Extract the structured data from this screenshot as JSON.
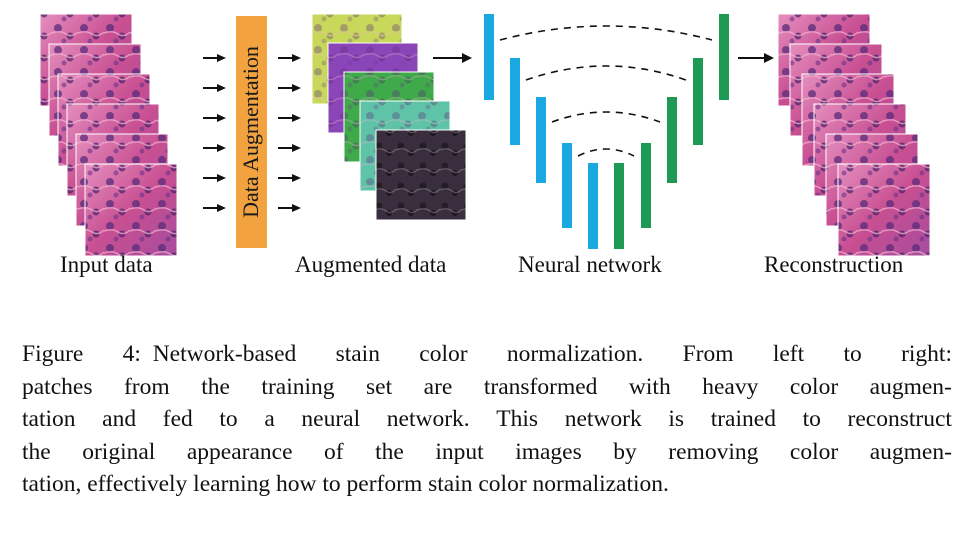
{
  "diagram": {
    "labels": {
      "input": "Input data",
      "augmented": "Augmented data",
      "network": "Neural network",
      "reconstruction": "Reconstruction"
    },
    "augmentation_box": "Data Augmentation",
    "colors": {
      "augmentation_box": "#f2a340",
      "encoder": "#1aa8e0",
      "decoder": "#1e9a55",
      "he_pink": "#d45a9a",
      "he_purple": "#6c3b87"
    },
    "augmented_tints": [
      "#c7d85a",
      "#8a46b8",
      "#3eaa4a",
      "#5fc3a8",
      "#3a2e3e"
    ]
  },
  "caption": {
    "lines": [
      "Figure 4:   Network-based stain color normalization. From left to right:",
      "patches from the training set are transformed with heavy color augmen-",
      "tation and fed to a neural network. This network is trained to reconstruct",
      "the original appearance of the input images by removing color augmen-",
      "tation, effectively learning how to perform stain color normalization."
    ]
  }
}
